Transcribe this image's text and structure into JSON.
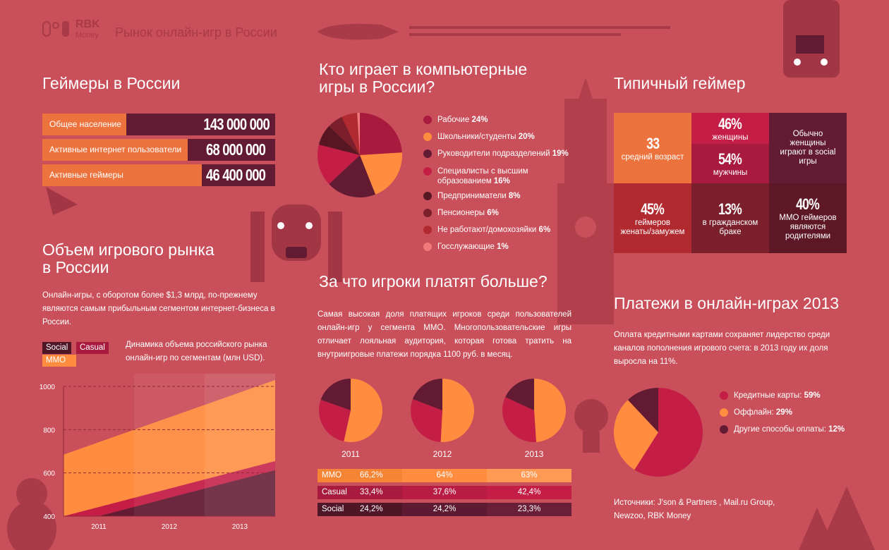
{
  "header": {
    "logo_text": "RBK",
    "logo_sub": "Money",
    "title": "Рынок онлайн-игр в России"
  },
  "colors": {
    "background": "#c94f5a",
    "orange": "#ec733e",
    "mmo": "#ff8c3f",
    "casual": "#c41e47",
    "social": "#621b33"
  },
  "gamers": {
    "title": "Геймеры в России",
    "rows": [
      {
        "label": "Общее население",
        "value": "143 000 000"
      },
      {
        "label": "Активные интернет пользователи",
        "value": "68 000 000"
      },
      {
        "label": "Активные геймеры",
        "value": "46 400 000"
      }
    ]
  },
  "market": {
    "title_line1": "Объем игрового рынка",
    "title_line2": "в России",
    "text": "Онлайн-игры, с оборотом более $1,3 млрд, по-прежнему являются самым прибыльным сегментом интернет-бизнеса в России.",
    "chart_caption": "Динамика объема российского рынка онлайн-игр по сегментам (млн USD)."
  },
  "who": {
    "title_line1": "Кто играет в компьютерные",
    "title_line2": "игры в России?"
  },
  "pay_more": {
    "title": "За что игроки платят больше?",
    "text": "Самая высокая доля платящих игроков среди пользователей онлайн-игр у сегмента MMO. Многопользовательские игры отличает лояльная аудитория, которая готова тратить на внутриигровые платежи порядка 1100 руб. в месяц."
  },
  "typical": {
    "title": "Типичный геймер",
    "cells": [
      {
        "big": "33",
        "text": "средний возраст"
      },
      {
        "big": "46%",
        "text": "женщины"
      },
      {
        "big": "54%",
        "text": "мужчины"
      },
      {
        "big": "",
        "text": "Обычно женщины играют в social игры"
      },
      {
        "big": "45%",
        "text": "геймеров женаты/замужем"
      },
      {
        "big": "13%",
        "text": "в гражданском браке"
      },
      {
        "big": "40%",
        "text": "MMO геймеров являются родителями"
      }
    ]
  },
  "payments": {
    "title": "Платежи в онлайн-играх 2013",
    "text": "Оплата кредитными картами сохраняет лидерство среди каналов пополнения игрового счета: в 2013 году их доля выросла на 11%.",
    "sources": "Источники: J'son & Partners , Mail.ru Group, Newzoo, RBK Money"
  },
  "chart_data": [
    {
      "type": "area",
      "title": "Динамика объема российского рынка онлайн-игр по сегментам (млн USD).",
      "legend": [
        "Social",
        "Casual",
        "MMO"
      ],
      "legend_placement": "top-left",
      "categories": [
        "2011",
        "2012",
        "2013"
      ],
      "ylim": [
        400,
        1000
      ],
      "yticks": [
        "400",
        "600",
        "800",
        "1000"
      ],
      "grid": true,
      "stacked": true,
      "series": [
        {
          "name": "Social",
          "values": [
            400,
            485,
            570
          ],
          "color": "#621b33"
        },
        {
          "name": "Casual",
          "values": [
            442,
            527,
            612
          ],
          "color": "#c41e47"
        },
        {
          "name": "MMO",
          "values": [
            742,
            857,
            972
          ],
          "color": "#ff8c3f"
        }
      ]
    },
    {
      "type": "pie",
      "slices": [
        {
          "label": "Рабочие",
          "value": 24,
          "text": "24%",
          "color": "#a81a3e"
        },
        {
          "label": "Школьники/студенты",
          "value": 20,
          "text": "20%",
          "color": "#ff8c3f"
        },
        {
          "label": "Руководители подразделений",
          "value": 19,
          "text": "19%",
          "color": "#621b33"
        },
        {
          "label": "Специалисты с высшим образованием",
          "value": 16,
          "text": "16%",
          "color": "#c41e47"
        },
        {
          "label": "Предприниматели",
          "value": 8,
          "text": "8%",
          "color": "#571622"
        },
        {
          "label": "Пенсионеры",
          "value": 6,
          "text": "6%",
          "color": "#7a1f2b"
        },
        {
          "label": "Не работают/домохозяйки",
          "value": 6,
          "text": "6%",
          "color": "#b02a30"
        },
        {
          "label": "Госслужающие",
          "value": 1,
          "text": "1%",
          "color": "#f07a7a"
        }
      ]
    },
    {
      "type": "pie",
      "title": "2011",
      "slices": [
        {
          "label": "MMO",
          "value": 66.2,
          "text": "66,2%"
        },
        {
          "label": "Casual",
          "value": 33.4,
          "text": "33,4%"
        },
        {
          "label": "Social",
          "value": 24.2,
          "text": "24,2%"
        }
      ]
    },
    {
      "type": "pie",
      "title": "2012",
      "slices": [
        {
          "label": "MMO",
          "value": 64,
          "text": "64%"
        },
        {
          "label": "Casual",
          "value": 37.6,
          "text": "37,6%"
        },
        {
          "label": "Social",
          "value": 24.2,
          "text": "24,2%"
        }
      ]
    },
    {
      "type": "pie",
      "title": "2013",
      "slices": [
        {
          "label": "MMO",
          "value": 63,
          "text": "63%"
        },
        {
          "label": "Casual",
          "value": 42.4,
          "text": "42,4%"
        },
        {
          "label": "Social",
          "value": 23.3,
          "text": "23,3%"
        }
      ]
    },
    {
      "type": "pie",
      "slices": [
        {
          "label": "Кредитные карты:",
          "value": 59,
          "text": "59%",
          "color": "#c41e47"
        },
        {
          "label": "Оффлайн:",
          "value": 29,
          "text": "29%",
          "color": "#ff8c3f"
        },
        {
          "label": "Другие способы оплаты:",
          "value": 12,
          "text": "12%",
          "color": "#621b33"
        }
      ]
    }
  ]
}
